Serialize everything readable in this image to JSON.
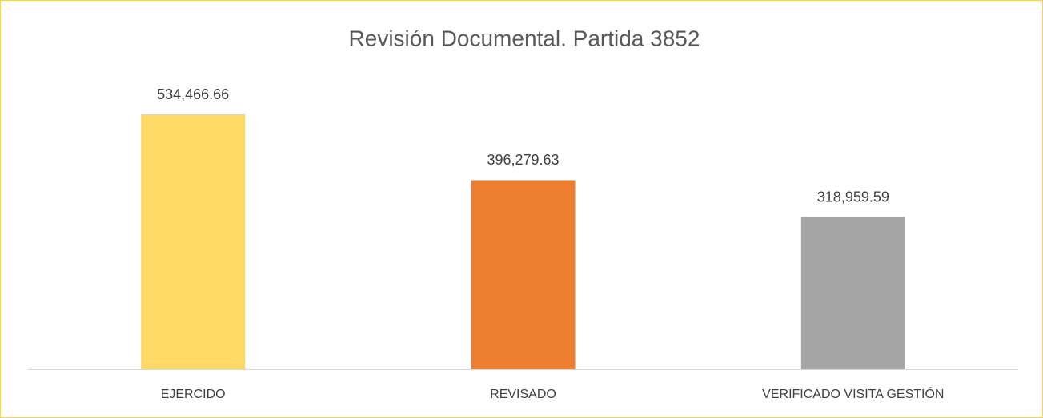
{
  "chart_data": {
    "type": "bar",
    "title": "Revisión Documental. Partida 3852",
    "categories": [
      "EJERCIDO",
      "REVISADO",
      "VERIFICADO VISITA GESTIÓN"
    ],
    "values": [
      534466.66,
      396279.63,
      318959.59
    ],
    "value_labels": [
      "534,466.66",
      "396,279.63",
      "318,959.59"
    ],
    "colors": [
      "#ffd966",
      "#ed7d31",
      "#a5a5a5"
    ]
  }
}
